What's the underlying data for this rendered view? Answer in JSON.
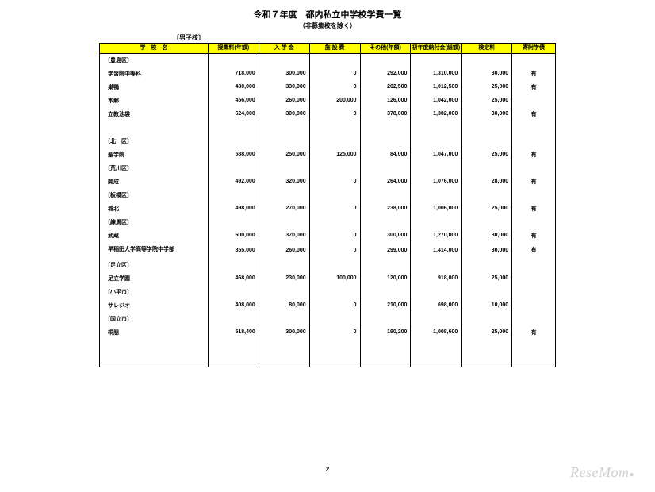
{
  "title": "令和７年度　都内私立中学校学費一覧",
  "subtitle": "（非募集校を除く）",
  "category_label": "〔男子校〕",
  "page_number": "2",
  "watermark": "ReseMom",
  "columns": [
    "学　校　名",
    "授業料(年額)",
    "入 学 金",
    "施 設 費",
    "その他(年額)",
    "初年度納付金(総額)",
    "検定料",
    "寄附学債"
  ],
  "rows": [
    {
      "type": "ward",
      "label": "〔豊島区〕"
    },
    {
      "type": "school",
      "label": "学習院中等科",
      "vals": [
        "718,000",
        "300,000",
        "0",
        "292,000",
        "1,310,000",
        "30,000",
        "有"
      ]
    },
    {
      "type": "school",
      "label": "巣鴨",
      "vals": [
        "480,000",
        "330,000",
        "0",
        "202,500",
        "1,012,500",
        "25,000",
        "有"
      ]
    },
    {
      "type": "school",
      "label": "本郷",
      "vals": [
        "456,000",
        "260,000",
        "200,000",
        "126,000",
        "1,042,000",
        "25,000",
        ""
      ]
    },
    {
      "type": "school",
      "label": "立教池袋",
      "vals": [
        "624,000",
        "300,000",
        "0",
        "378,000",
        "1,302,000",
        "30,000",
        "有"
      ]
    },
    {
      "type": "spacer"
    },
    {
      "type": "ward",
      "label": "〔北　区〕"
    },
    {
      "type": "school",
      "label": "聖学院",
      "vals": [
        "588,000",
        "250,000",
        "125,000",
        "84,000",
        "1,047,000",
        "25,000",
        "有"
      ]
    },
    {
      "type": "ward",
      "label": "〔荒川区〕"
    },
    {
      "type": "school",
      "label": "開成",
      "vals": [
        "492,000",
        "320,000",
        "0",
        "264,000",
        "1,076,000",
        "28,000",
        "有"
      ]
    },
    {
      "type": "ward",
      "label": "〔板橋区〕"
    },
    {
      "type": "school",
      "label": "城北",
      "vals": [
        "498,000",
        "270,000",
        "0",
        "238,000",
        "1,006,000",
        "25,000",
        "有"
      ]
    },
    {
      "type": "ward",
      "label": "〔練馬区〕"
    },
    {
      "type": "school",
      "label": "武蔵",
      "vals": [
        "600,000",
        "370,000",
        "0",
        "300,000",
        "1,270,000",
        "30,000",
        "有"
      ]
    },
    {
      "type": "school",
      "label": "早稲田大学高等学院中学部",
      "vals": [
        "855,000",
        "260,000",
        "0",
        "299,000",
        "1,414,000",
        "30,000",
        "有"
      ],
      "tall": true
    },
    {
      "type": "ward",
      "label": "〔足立区〕"
    },
    {
      "type": "school",
      "label": "足立学園",
      "vals": [
        "468,000",
        "230,000",
        "100,000",
        "120,000",
        "918,000",
        "25,000",
        ""
      ]
    },
    {
      "type": "ward",
      "label": "〔小平市〕"
    },
    {
      "type": "school",
      "label": "サレジオ",
      "vals": [
        "408,000",
        "80,000",
        "0",
        "210,000",
        "698,000",
        "10,000",
        ""
      ]
    },
    {
      "type": "ward",
      "label": "〔国立市〕"
    },
    {
      "type": "school",
      "label": "桐朋",
      "vals": [
        "518,400",
        "300,000",
        "0",
        "190,200",
        "1,008,600",
        "25,000",
        "有"
      ]
    },
    {
      "type": "bottom"
    }
  ]
}
